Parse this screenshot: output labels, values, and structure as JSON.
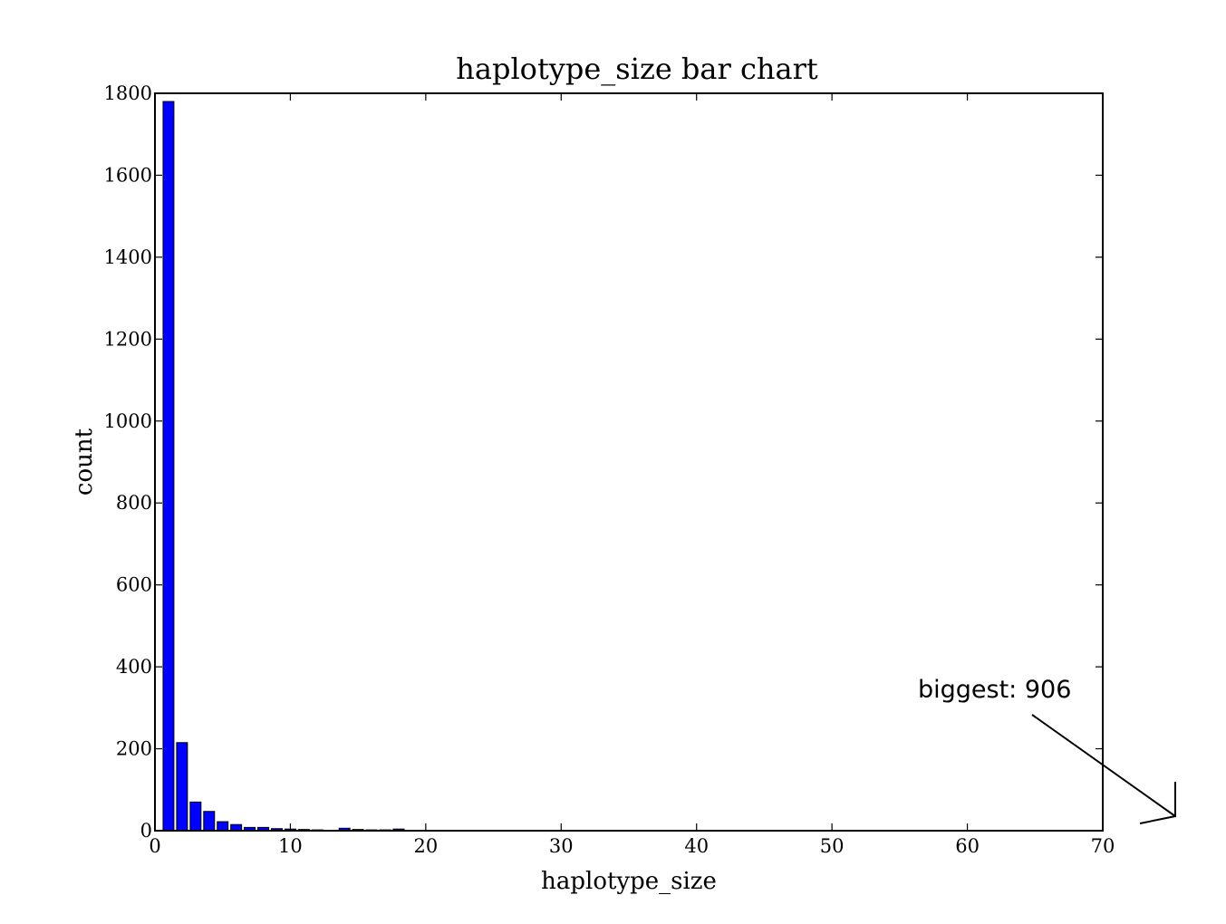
{
  "chart_data": {
    "type": "bar",
    "title": "haplotype_size bar chart",
    "xlabel": "haplotype_size",
    "ylabel": "count",
    "xlim": [
      0,
      70
    ],
    "ylim": [
      0,
      1800
    ],
    "x_ticks": [
      0,
      10,
      20,
      30,
      40,
      50,
      60,
      70
    ],
    "y_ticks": [
      0,
      200,
      400,
      600,
      800,
      1000,
      1200,
      1400,
      1600,
      1800
    ],
    "grid": false,
    "bar_color": "#0000ff",
    "x": [
      1,
      2,
      3,
      4,
      5,
      6,
      7,
      8,
      9,
      10,
      11,
      12,
      13,
      14,
      15,
      16,
      17,
      18,
      20,
      22,
      23,
      24,
      25,
      26,
      33,
      34
    ],
    "values": [
      1780,
      215,
      70,
      47,
      22,
      15,
      8,
      8,
      5,
      4,
      3,
      2,
      1,
      6,
      3,
      2,
      2,
      4,
      1,
      1,
      1,
      1,
      1,
      1,
      1,
      1
    ],
    "annotation": {
      "text": "biggest: 906"
    }
  }
}
